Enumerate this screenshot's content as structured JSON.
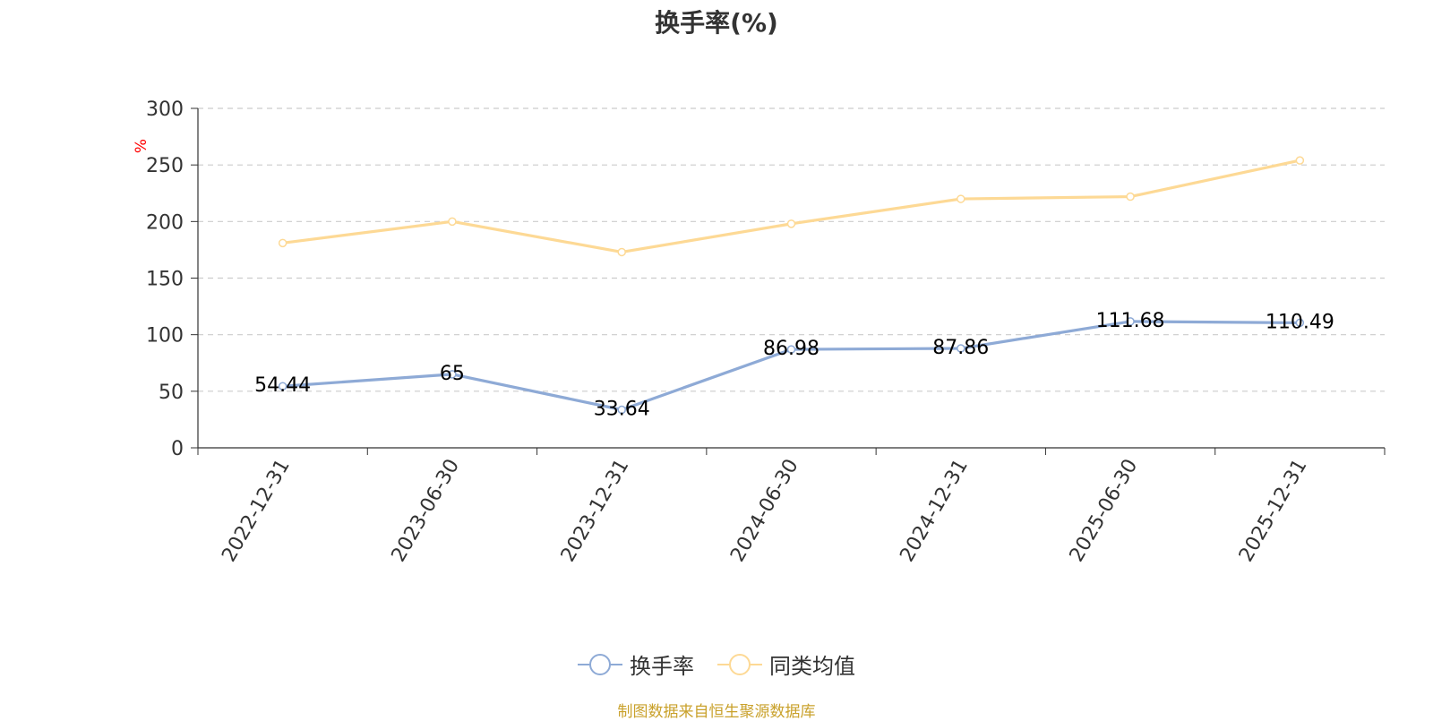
{
  "chart_data": {
    "type": "line",
    "title": "换手率(%)",
    "ylabel": "%",
    "ylim": [
      0,
      300
    ],
    "yticks": [
      "0",
      "50",
      "100",
      "150",
      "200",
      "250",
      "300"
    ],
    "categories": [
      "2022-12-31",
      "2023-06-30",
      "2023-12-31",
      "2024-06-30",
      "2024-12-31",
      "2025-06-30",
      "2025-12-31"
    ],
    "series": [
      {
        "name": "换手率",
        "color": "#8eaad6",
        "values": [
          54.44,
          65,
          33.64,
          86.98,
          87.86,
          111.68,
          110.49
        ],
        "labels": [
          "54.44",
          "65",
          "33.64",
          "86.98",
          "87.86",
          "111.68",
          "110.49"
        ]
      },
      {
        "name": "同类均值",
        "color": "#fdd995",
        "values": [
          181,
          200,
          173,
          198,
          220,
          222,
          254
        ]
      }
    ],
    "grid": true,
    "legend_position": "bottom"
  },
  "source_text": "制图数据来自恒生聚源数据库",
  "colors": {
    "axis": "#333333",
    "grid": "#cccccc",
    "ylabel": "#ff0000",
    "source": "#c9a12b"
  }
}
